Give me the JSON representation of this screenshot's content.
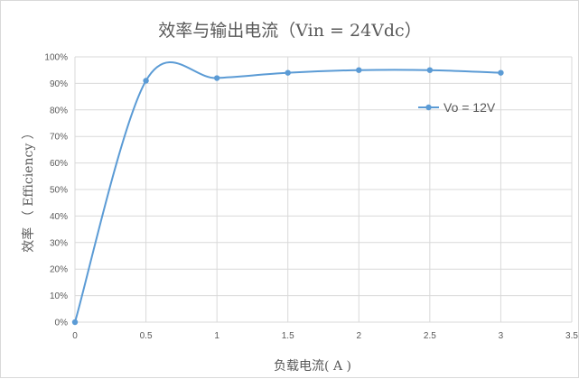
{
  "chart_data": {
    "type": "line",
    "title": "效率与输出电流（Vin = 24Vdc）",
    "xlabel": "负载电流( A )",
    "ylabel": "效率 （ Efficiency ）",
    "xlim": [
      0,
      3.5
    ],
    "ylim": [
      0,
      100
    ],
    "x_ticks": [
      "0",
      "0.5",
      "1",
      "1.5",
      "2",
      "2.5",
      "3",
      "3.5"
    ],
    "y_ticks": [
      "0%",
      "10%",
      "20%",
      "30%",
      "40%",
      "50%",
      "60%",
      "70%",
      "80%",
      "90%",
      "100%"
    ],
    "grid": true,
    "smooth": true,
    "legend_position": "right",
    "series": [
      {
        "name": "Vo = 12V",
        "color": "#5b9bd5",
        "x": [
          0,
          0.5,
          1,
          1.5,
          2,
          2.5,
          3
        ],
        "y": [
          0,
          91,
          92,
          94,
          95,
          95,
          94
        ]
      }
    ]
  }
}
